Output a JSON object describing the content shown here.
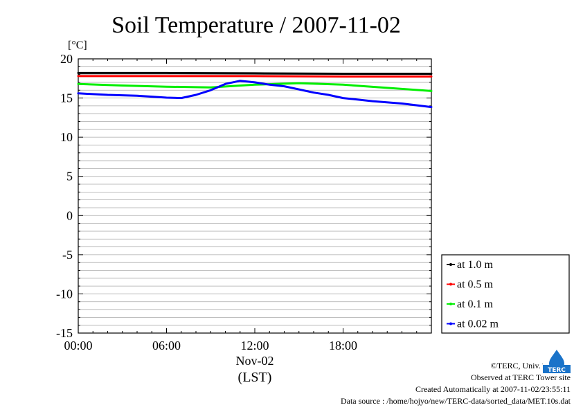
{
  "chart_data": {
    "type": "line",
    "title": "Soil Temperature / 2007-11-02",
    "ylabel_unit": "[°C]",
    "ylim": [
      -15,
      20
    ],
    "y_ticks": [
      "20",
      "15",
      "10",
      "5",
      "0",
      "-5",
      "-10",
      "-15"
    ],
    "x_range_hours": [
      0,
      24
    ],
    "x_ticks": [
      {
        "hour": 0,
        "label": "00:00"
      },
      {
        "hour": 6,
        "label": "06:00"
      },
      {
        "hour": 12,
        "label": "12:00"
      },
      {
        "hour": 18,
        "label": "18:00"
      }
    ],
    "x_date_label": "Nov-02",
    "x_timezone_label": "(LST)",
    "grid": true,
    "legend_position": "right-bottom",
    "series": [
      {
        "name": "at 1.0 m",
        "color": "#000000",
        "x": [
          0,
          6,
          12,
          18,
          24
        ],
        "y": [
          18.2,
          18.2,
          18.15,
          18.1,
          18.1
        ]
      },
      {
        "name": "at 0.5 m",
        "color": "#ff0000",
        "x": [
          0,
          6,
          12,
          18,
          24
        ],
        "y": [
          17.8,
          17.8,
          17.8,
          17.75,
          17.75
        ]
      },
      {
        "name": "at 0.1 m",
        "color": "#00ee00",
        "x": [
          0,
          3,
          6,
          9,
          12,
          15,
          18,
          21,
          24
        ],
        "y": [
          16.8,
          16.6,
          16.45,
          16.35,
          16.7,
          16.9,
          16.7,
          16.3,
          15.9
        ]
      },
      {
        "name": "at 0.02 m",
        "color": "#0000ff",
        "x": [
          0,
          2,
          4,
          6,
          7,
          8,
          9,
          10,
          11,
          12,
          13,
          14,
          15,
          16,
          17,
          18,
          20,
          22,
          24
        ],
        "y": [
          15.6,
          15.4,
          15.3,
          15.05,
          15.0,
          15.4,
          16.0,
          16.8,
          17.2,
          17.0,
          16.7,
          16.5,
          16.1,
          15.7,
          15.4,
          15.0,
          14.6,
          14.3,
          13.85
        ]
      }
    ]
  },
  "footer": {
    "copyright": "©TERC, Univ. Tsukuba",
    "observed": "Observed at TERC Tower site",
    "created": "Created Automatically at 2007-11-02/23:55:11",
    "source": "Data source : /home/hojyo/new/TERC-data/sorted_data/MET.10s.dat"
  },
  "logo": {
    "text": "TERC",
    "color": "#1a73c9"
  }
}
